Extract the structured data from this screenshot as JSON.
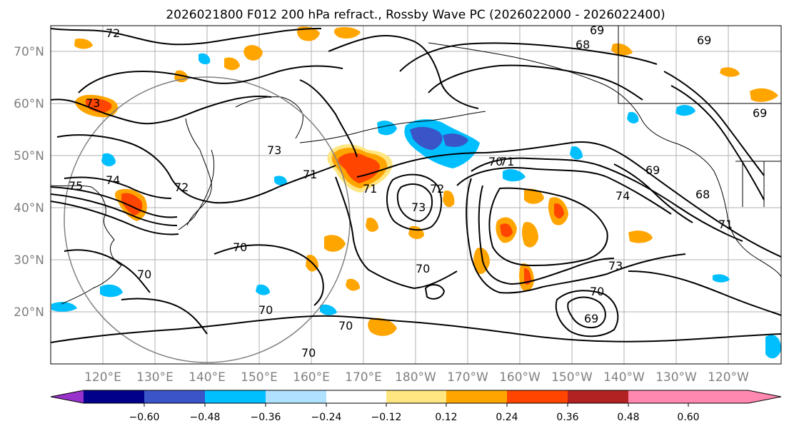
{
  "title": "2026021800 F012 200 hPa refract., Rossby Wave PC (2026022000 - 2026022400)",
  "axes": {
    "lat_labels": [
      "70°N",
      "60°N",
      "50°N",
      "40°N",
      "30°N",
      "20°N"
    ],
    "lon_labels": [
      "120°E",
      "130°E",
      "140°E",
      "150°E",
      "160°E",
      "170°E",
      "180°W",
      "170°W",
      "160°W",
      "150°W",
      "140°W",
      "130°W",
      "120°W"
    ]
  },
  "colorbar": {
    "ticks": [
      "−0.60",
      "−0.48",
      "−0.36",
      "−0.24",
      "−0.12",
      "0.12",
      "0.24",
      "0.36",
      "0.48",
      "0.60"
    ],
    "colors": [
      "#9932cc",
      "#00008b",
      "#3a55c8",
      "#00bfff",
      "#b0e2ff",
      "#ffffff",
      "#ffe680",
      "#ffa500",
      "#ff4500",
      "#b22222",
      "#ff88b0"
    ]
  },
  "contour_labels": [
    "72",
    "73",
    "74",
    "75",
    "72",
    "69",
    "68",
    "69",
    "69",
    "68",
    "71",
    "73",
    "71",
    "71",
    "71",
    "73",
    "72",
    "70",
    "69",
    "74",
    "70",
    "70",
    "70",
    "70",
    "73",
    "70",
    "69",
    "70",
    "70"
  ],
  "chart_data": {
    "type": "map",
    "title": "2026021800 F012 200 hPa refract., Rossby Wave PC (2026022000 - 2026022400)",
    "lat_range": [
      10,
      75
    ],
    "lon_range": [
      110,
      250
    ],
    "filled_field_levels": [
      -0.6,
      -0.48,
      -0.36,
      -0.24,
      -0.12,
      0.12,
      0.24,
      0.36,
      0.48,
      0.6
    ],
    "contour_levels": [
      68,
      69,
      70,
      71,
      72,
      73,
      74,
      75
    ]
  }
}
